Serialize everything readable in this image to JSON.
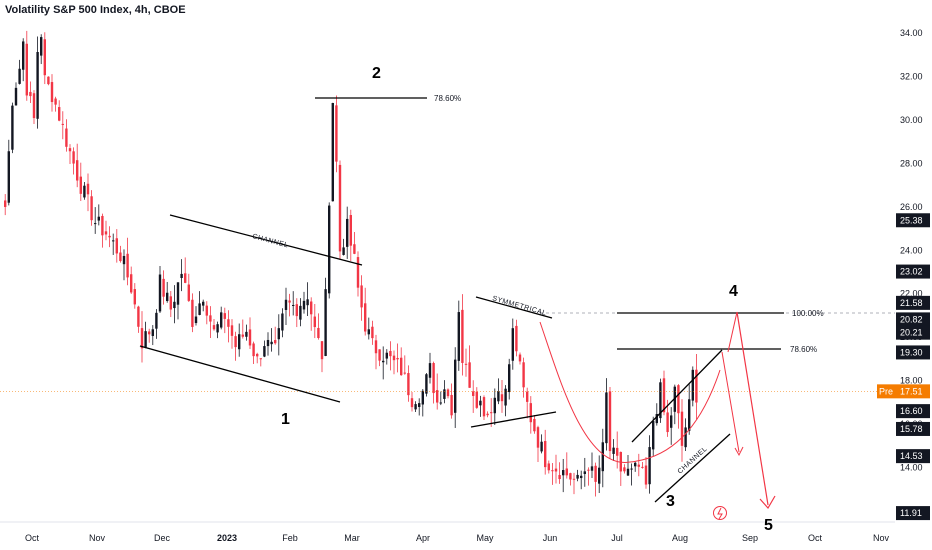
{
  "chart_data": {
    "type": "candlestick",
    "title": "Volatility S&P 500 Index, 4h, CBOE",
    "unit_label": "point",
    "ylim": [
      11.5,
      34.5
    ],
    "y_ticks": [
      14,
      16,
      18,
      20,
      22,
      24,
      26,
      28,
      30,
      32,
      34
    ],
    "y_tick_labels": [
      "14.00",
      "16.00",
      "18.00",
      "20.00",
      "22.00",
      "24.00",
      "26.00",
      "28.00",
      "30.00",
      "32.00",
      "34.00"
    ],
    "x_ticks": [
      {
        "label": "Oct",
        "bold": false
      },
      {
        "label": "Nov",
        "bold": false
      },
      {
        "label": "Dec",
        "bold": false
      },
      {
        "label": "2023",
        "bold": true
      },
      {
        "label": "Feb",
        "bold": false
      },
      {
        "label": "Mar",
        "bold": false
      },
      {
        "label": "Apr",
        "bold": false
      },
      {
        "label": "May",
        "bold": false
      },
      {
        "label": "Jun",
        "bold": false
      },
      {
        "label": "Jul",
        "bold": false
      },
      {
        "label": "Aug",
        "bold": false
      },
      {
        "label": "Sep",
        "bold": false
      },
      {
        "label": "Oct",
        "bold": false
      },
      {
        "label": "Nov",
        "bold": false
      }
    ],
    "series_anchors": [
      [
        0,
        26.0
      ],
      [
        2,
        31.0
      ],
      [
        4,
        32.4
      ],
      [
        5,
        33.6
      ],
      [
        6,
        31.5
      ],
      [
        8,
        30.0
      ],
      [
        9,
        33.2
      ],
      [
        10,
        34.0
      ],
      [
        11,
        31.8
      ],
      [
        13,
        31.2
      ],
      [
        15,
        30.2
      ],
      [
        18,
        28.5
      ],
      [
        21,
        27.0
      ],
      [
        25,
        25.3
      ],
      [
        28,
        24.8
      ],
      [
        32,
        23.8
      ],
      [
        35,
        22.3
      ],
      [
        38,
        19.8
      ],
      [
        41,
        20.5
      ],
      [
        43,
        22.5
      ],
      [
        46,
        21.3
      ],
      [
        49,
        23.0
      ],
      [
        52,
        20.8
      ],
      [
        55,
        22.0
      ],
      [
        58,
        20.2
      ],
      [
        61,
        21.0
      ],
      [
        64,
        19.6
      ],
      [
        67,
        20.3
      ],
      [
        70,
        18.9
      ],
      [
        72,
        19.8
      ],
      [
        75,
        19.3
      ],
      [
        78,
        21.5
      ],
      [
        81,
        21.4
      ],
      [
        84,
        22.0
      ],
      [
        86,
        20.3
      ],
      [
        88,
        19.2
      ],
      [
        89,
        21.8
      ],
      [
        90,
        26.5
      ],
      [
        91,
        30.9
      ],
      [
        92,
        28.0
      ],
      [
        93,
        24.0
      ],
      [
        95,
        25.0
      ],
      [
        97,
        23.5
      ],
      [
        98,
        22.2
      ],
      [
        100,
        20.6
      ],
      [
        102,
        19.6
      ],
      [
        106,
        19.1
      ],
      [
        110,
        18.5
      ],
      [
        113,
        17.2
      ],
      [
        116,
        17.5
      ],
      [
        118,
        18.5
      ],
      [
        120,
        17.0
      ],
      [
        122,
        17.8
      ],
      [
        124,
        16.8
      ],
      [
        126,
        21.4
      ],
      [
        127,
        19.0
      ],
      [
        129,
        18.0
      ],
      [
        131,
        17.2
      ],
      [
        134,
        16.5
      ],
      [
        137,
        17.6
      ],
      [
        139,
        17.4
      ],
      [
        141,
        20.2
      ],
      [
        142,
        19.5
      ],
      [
        144,
        17.5
      ],
      [
        146,
        16.3
      ],
      [
        148,
        15.3
      ],
      [
        150,
        14.4
      ],
      [
        153,
        14.0
      ],
      [
        156,
        13.7
      ],
      [
        159,
        13.3
      ],
      [
        162,
        14.2
      ],
      [
        164,
        13.2
      ],
      [
        166,
        14.8
      ],
      [
        167,
        17.3
      ],
      [
        168,
        14.8
      ],
      [
        171,
        13.9
      ],
      [
        174,
        13.7
      ],
      [
        176,
        14.0
      ],
      [
        178,
        13.1
      ],
      [
        180,
        16.2
      ],
      [
        182,
        17.5
      ],
      [
        184,
        15.5
      ],
      [
        186,
        17.5
      ],
      [
        188,
        15.0
      ],
      [
        190,
        16.8
      ],
      [
        191,
        18.3
      ],
      [
        192,
        17.4
      ]
    ],
    "price_scale_tags": [
      {
        "value": 25.38,
        "label": "25.38",
        "color": "#131722"
      },
      {
        "value": 23.02,
        "label": "23.02",
        "color": "#131722"
      },
      {
        "value": 21.58,
        "label": "21.58",
        "color": "#131722"
      },
      {
        "value": 20.82,
        "label": "20.82",
        "color": "#131722"
      },
      {
        "value": 20.21,
        "label": "20.21",
        "color": "#131722"
      },
      {
        "value": 19.3,
        "label": "19.30",
        "color": "#131722"
      },
      {
        "value": 16.6,
        "label": "16.60",
        "color": "#131722"
      },
      {
        "value": 15.78,
        "label": "15.78",
        "color": "#131722"
      },
      {
        "value": 14.53,
        "label": "14.53",
        "color": "#131722"
      },
      {
        "value": 11.91,
        "label": "11.91",
        "color": "#131722"
      }
    ],
    "current_price": {
      "value": 17.51,
      "label": "17.51",
      "prefix": "Pre",
      "color": "#f57c00"
    },
    "colors": {
      "up": "#131722",
      "down": "#f23645",
      "accent": "#f23645"
    },
    "annotations": {
      "fib_labels": [
        "78.60%",
        "100.00%",
        "78.60%"
      ],
      "channel_labels": [
        "CHANNEL",
        "SYMMETRICAL",
        "CHANNEL"
      ],
      "wave_labels": [
        "1",
        "2",
        "3",
        "4",
        "5"
      ]
    }
  }
}
